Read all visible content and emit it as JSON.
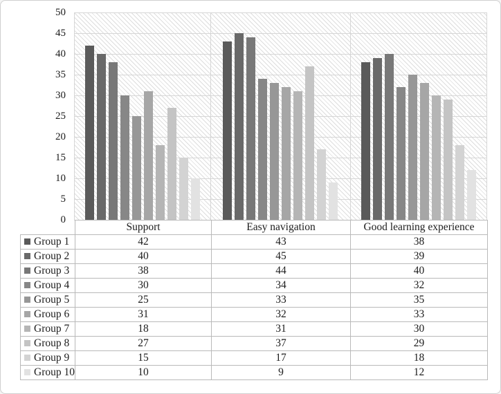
{
  "chart_data": {
    "type": "bar",
    "title": "",
    "categories": [
      "Support",
      "Easy navigation",
      "Good learning experience"
    ],
    "series": [
      {
        "name": "Group 1",
        "values": [
          42,
          43,
          38
        ]
      },
      {
        "name": "Group 2",
        "values": [
          40,
          45,
          39
        ]
      },
      {
        "name": "Group 3",
        "values": [
          38,
          44,
          40
        ]
      },
      {
        "name": "Group 4",
        "values": [
          30,
          34,
          32
        ]
      },
      {
        "name": "Group 5",
        "values": [
          25,
          33,
          35
        ]
      },
      {
        "name": "Group 6",
        "values": [
          31,
          32,
          33
        ]
      },
      {
        "name": "Group 7",
        "values": [
          18,
          31,
          30
        ]
      },
      {
        "name": "Group 8",
        "values": [
          27,
          37,
          29
        ]
      },
      {
        "name": "Group 9",
        "values": [
          15,
          17,
          18
        ]
      },
      {
        "name": "Group 10",
        "values": [
          10,
          9,
          12
        ]
      }
    ],
    "ylim": [
      0,
      50
    ],
    "yticks": [
      0,
      5,
      10,
      15,
      20,
      25,
      30,
      35,
      40,
      45,
      50
    ],
    "grid": "horizontal",
    "plot_background": "light-diagonal-hatch",
    "legend_position": "data-table-left-column"
  },
  "colors": {
    "series_grays": [
      "#5a5a5a",
      "#696969",
      "#787878",
      "#878787",
      "#979797",
      "#a6a6a6",
      "#b5b5b5",
      "#c4c4c4",
      "#d3d3d3",
      "#e2e2e2"
    ],
    "gridline": "#d6d6d6",
    "hatch_line": "#dddddd",
    "table_border": "#b9b9b9",
    "text": "#1c1c1c",
    "frame_border": "#cfcfcf",
    "background": "#ffffff"
  }
}
